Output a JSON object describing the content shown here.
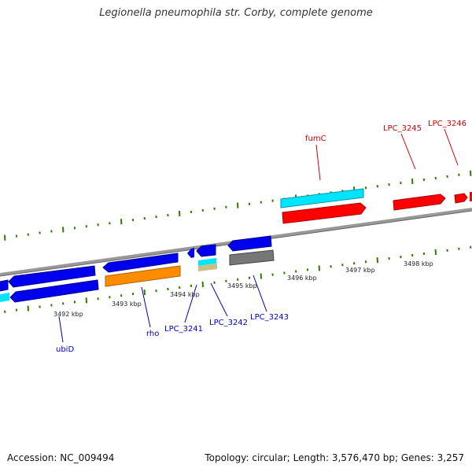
{
  "title": "Legionella pneumophila str. Corby, complete genome",
  "footer": {
    "accession": "Accession: NC_009494",
    "summary": "Topology: circular; Length: 3,576,470 bp; Genes: 3,257"
  },
  "colors": {
    "forward_gene": "#ff0000",
    "forward_rna": "#00e5ff",
    "reverse_gene": "#0000ee",
    "reverse_orange": "#ff8c00",
    "reverse_gray": "#777777",
    "reverse_tan": "#c8bf80",
    "reverse_cyan": "#00e5ff",
    "forward_label": "#cc0000",
    "reverse_label": "#0000bb",
    "tick": "#2e7d00",
    "backbone": "#888888"
  },
  "scale_labels": [
    "3492 kbp",
    "3493 kbp",
    "3494 kbp",
    "3495 kbp",
    "3496 kbp",
    "3497 kbp",
    "3498 kbp"
  ],
  "gene_labels": {
    "forward": [
      "fumC",
      "LPC_3245",
      "LPC_3246"
    ],
    "reverse": [
      "ubiD",
      "rho",
      "LPC_3241",
      "LPC_3242",
      "LPC_3243"
    ]
  }
}
